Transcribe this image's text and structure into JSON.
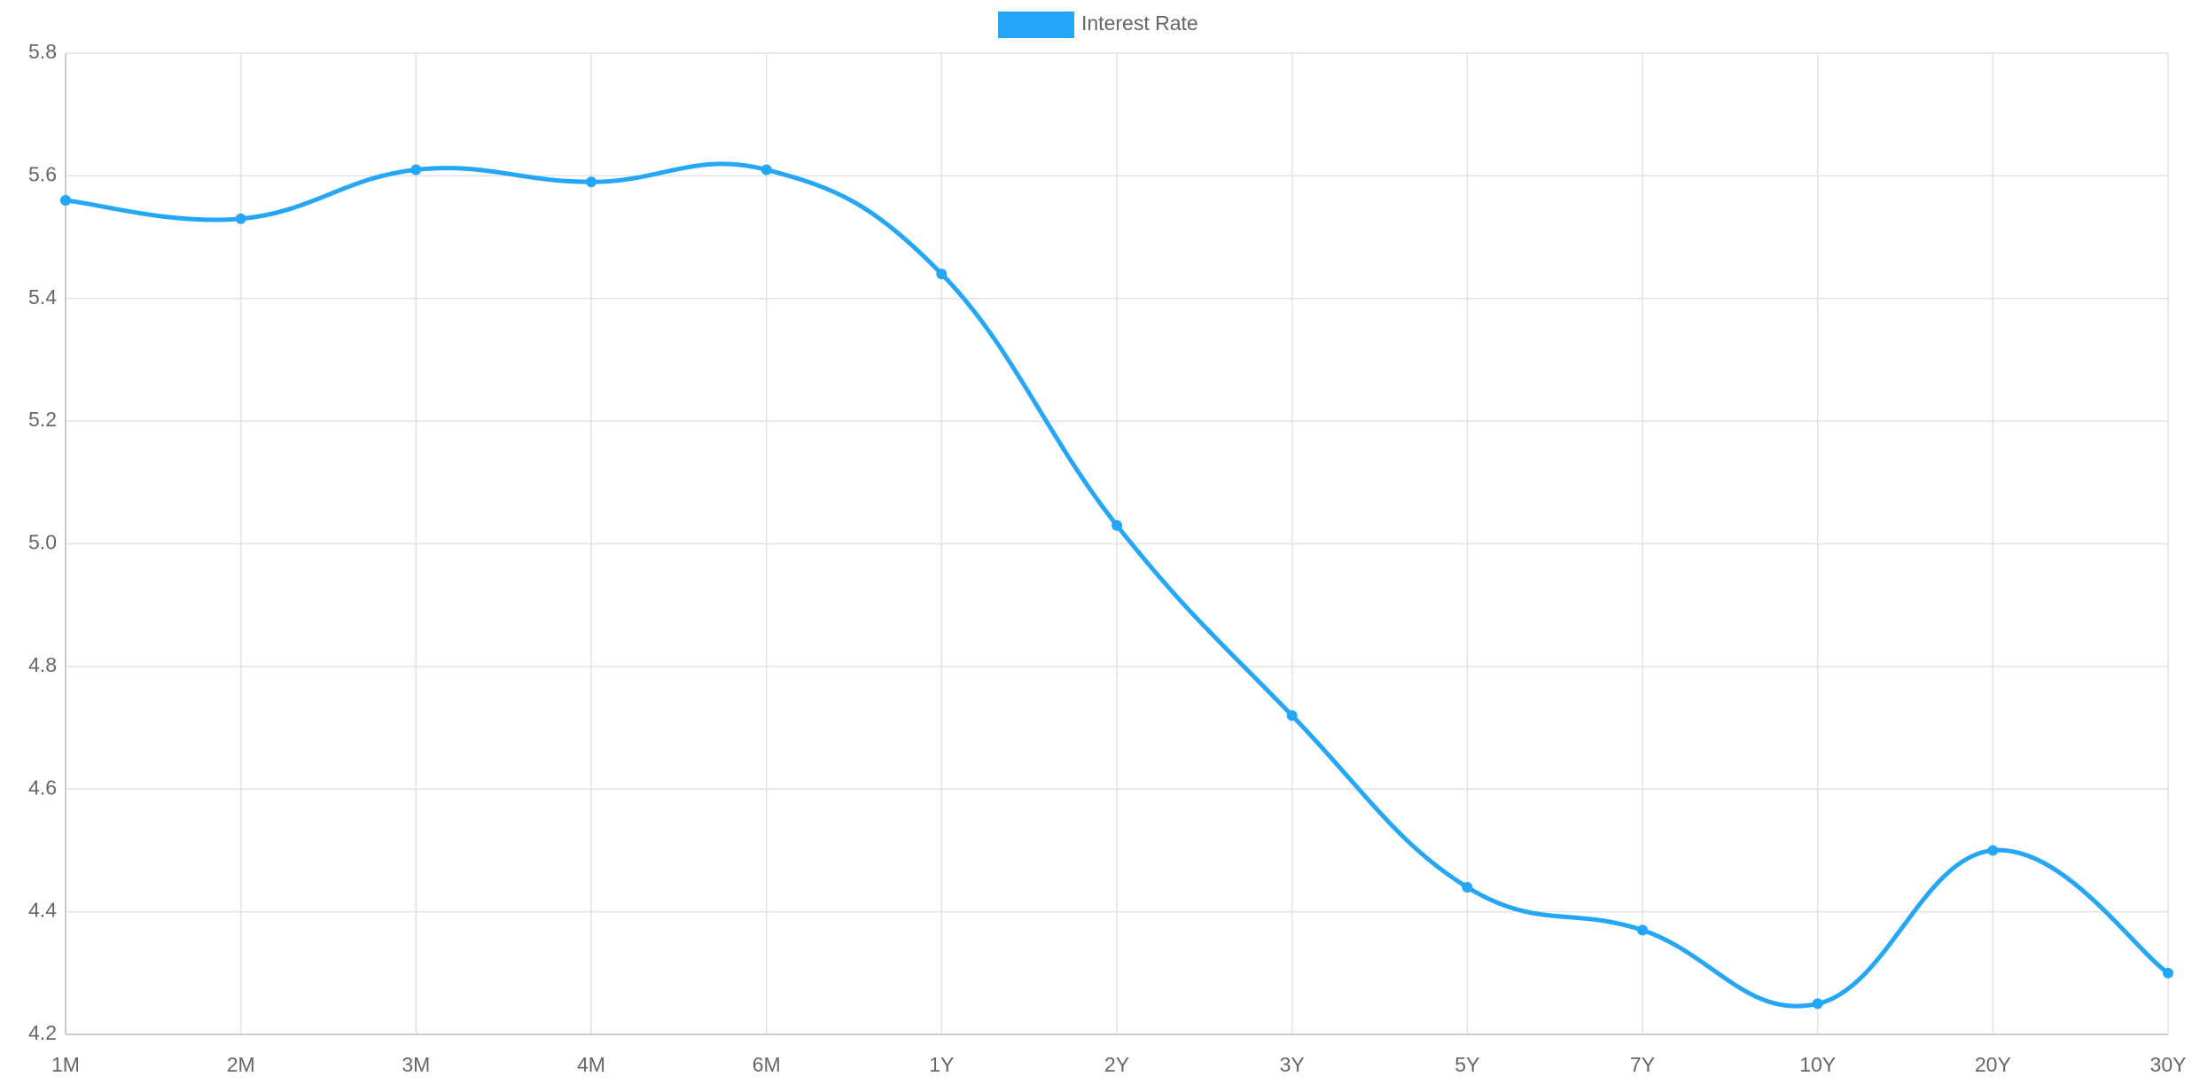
{
  "chart_data": {
    "type": "line",
    "categories": [
      "1M",
      "2M",
      "3M",
      "4M",
      "6M",
      "1Y",
      "2Y",
      "3Y",
      "5Y",
      "7Y",
      "10Y",
      "20Y",
      "30Y"
    ],
    "series": [
      {
        "name": "Interest Rate",
        "color": "#24a6f9",
        "values": [
          5.56,
          5.53,
          5.61,
          5.59,
          5.61,
          5.44,
          5.03,
          4.72,
          4.44,
          4.37,
          4.25,
          4.5,
          4.3
        ]
      }
    ],
    "ylim": [
      4.2,
      5.8
    ],
    "yticks": [
      4.2,
      4.4,
      4.6,
      4.8,
      {
        "value": 5,
        "label": "5.0"
      },
      5.2,
      5.4,
      5.6,
      5.8
    ],
    "grid": true,
    "legend": "top"
  }
}
